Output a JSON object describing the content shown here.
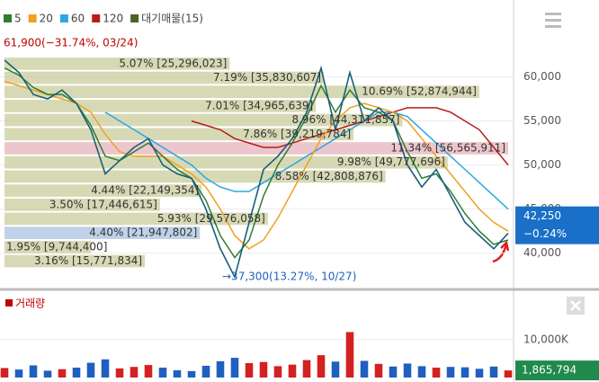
{
  "chart_data": {
    "type": "stock",
    "legend": [
      {
        "name": "5",
        "color": "#2e7d32"
      },
      {
        "name": "20",
        "color": "#f0a020"
      },
      {
        "name": "60",
        "color": "#29a8e0"
      },
      {
        "name": "120",
        "color": "#b71c1c"
      },
      {
        "name": "대기매물(15)",
        "color": "#4f6228"
      }
    ],
    "price": {
      "color": "#17607a",
      "values": [
        61900,
        60500,
        58000,
        57500,
        58500,
        57000,
        54000,
        49000,
        50500,
        52000,
        53000,
        50000,
        49000,
        48500,
        45000,
        40500,
        37300,
        43500,
        49500,
        51000,
        53000,
        56000,
        61000,
        54000,
        60500,
        55000,
        56500,
        55000,
        50000,
        47500,
        49500,
        46500,
        43500,
        42000,
        40500,
        42250
      ]
    },
    "series": [
      {
        "name": "5",
        "color": "#2e7d32",
        "values": [
          61000,
          60200,
          58800,
          58000,
          58000,
          57000,
          54500,
          51000,
          50500,
          51500,
          52500,
          51000,
          49500,
          48500,
          46000,
          42000,
          39500,
          41500,
          46500,
          50000,
          52500,
          55500,
          59000,
          56000,
          58500,
          56500,
          56000,
          55000,
          51500,
          48500,
          49000,
          47000,
          44500,
          42500,
          41000,
          41500
        ]
      },
      {
        "name": "20",
        "color": "#f0a020",
        "values": [
          59500,
          59000,
          58500,
          58000,
          57500,
          57000,
          56000,
          53500,
          51500,
          51000,
          51000,
          51000,
          50000,
          49000,
          47500,
          45000,
          42000,
          40500,
          41500,
          44000,
          47000,
          50000,
          53000,
          55000,
          56500,
          57000,
          56500,
          56000,
          55000,
          53000,
          51000,
          49000,
          47000,
          45000,
          43500,
          42500
        ]
      },
      {
        "name": "60",
        "color": "#29a8e0",
        "values": [
          null,
          null,
          null,
          null,
          null,
          null,
          null,
          56000,
          55000,
          54000,
          53000,
          52000,
          51000,
          50000,
          48500,
          47500,
          47000,
          47000,
          48000,
          49000,
          50000,
          51000,
          52000,
          53000,
          54000,
          55000,
          56000,
          56000,
          55500,
          54000,
          52500,
          51000,
          49500,
          48000,
          46500,
          45000
        ]
      },
      {
        "name": "120",
        "color": "#b71c1c",
        "values": [
          null,
          null,
          null,
          null,
          null,
          null,
          null,
          null,
          null,
          null,
          null,
          null,
          null,
          55000,
          54500,
          54000,
          53000,
          52500,
          52000,
          52000,
          52500,
          53000,
          53500,
          54000,
          54500,
          55000,
          55500,
          56000,
          56500,
          56500,
          56500,
          56000,
          55000,
          54000,
          52000,
          50000
        ]
      }
    ],
    "profile": {
      "name": "대기매물(15)",
      "color": "#c9cc9c",
      "max_color": "#e6b3bb",
      "current_color": "#a9c3e2",
      "bins": [
        62300,
        60700,
        59100,
        57500,
        55900,
        54300,
        52700,
        51100,
        49500,
        47900,
        46300,
        44700,
        43100,
        41500,
        39900,
        38300
      ],
      "values": [
        5.07,
        7.19,
        10.69,
        7.01,
        8.96,
        7.86,
        11.34,
        9.98,
        8.58,
        4.44,
        3.5,
        5.93,
        4.4,
        1.95,
        3.16
      ],
      "value_labels": [
        "5.07% [25,296,023]",
        "7.19% [35,830,607]",
        "10.69% [52,874,944]",
        "7.01% [34,965,639]",
        "8.96% [44,311,857]",
        "7.86% [39,219,784]",
        "11.34% [56,565,911]",
        "9.98% [49,777,696]",
        "8.58% [42,808,876]",
        "4.44% [22,149,354]",
        "3.50% [17,446,615]",
        "5.93% [29,576,058]",
        "4.40% [21,947,802]",
        "1.95% [9,744,400]",
        "3.16% [15,771,834]"
      ]
    },
    "ylim": [
      36300,
      67700
    ],
    "yticks": [
      {
        "value": 40000,
        "label": "40,000"
      },
      {
        "value": 45000,
        "label": "45,000"
      },
      {
        "value": 50000,
        "label": "50,000"
      },
      {
        "value": 55000,
        "label": "55,000"
      },
      {
        "value": 60000,
        "label": "60,000"
      }
    ],
    "grid": true,
    "high_annotation": "61,900(−31.74%, 03/24)",
    "low_annotation": "→37,300(13.27%, 10/27)",
    "current_price": {
      "value": 42250,
      "label": "42,250"
    },
    "current_change": "−0.24%",
    "volume": {
      "name": "거래량",
      "color": "#c00000",
      "up_color": "#d42020",
      "down_color": "#1f5fbf",
      "values": [
        2500000,
        2100000,
        3200000,
        1800000,
        2200000,
        2600000,
        3900000,
        4800000,
        2400000,
        2800000,
        3300000,
        2600000,
        1900000,
        1700000,
        3100000,
        4300000,
        5200000,
        3800000,
        4100000,
        3000000,
        3400000,
        4600000,
        5900000,
        4200000,
        12000000,
        4400000,
        3600000,
        2900000,
        3700000,
        3000000,
        2600000,
        2800000,
        2700000,
        2300000,
        2900000,
        1865794
      ],
      "ylim": [
        0,
        19000000
      ],
      "yticks": [
        {
          "value": 10000000,
          "label": "10,000K"
        }
      ],
      "current": {
        "value": 1865794,
        "label": "1,865,794"
      }
    }
  }
}
